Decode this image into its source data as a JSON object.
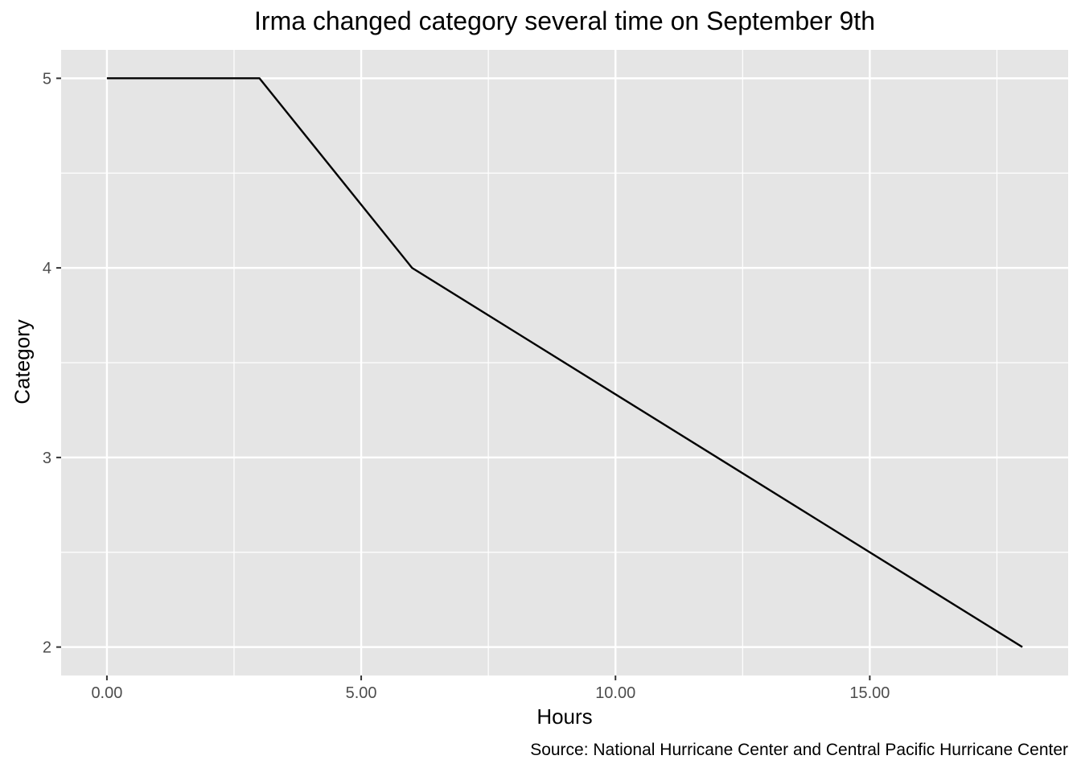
{
  "chart_data": {
    "type": "line",
    "title": "Irma changed category several time on September 9th",
    "xlabel": "Hours",
    "ylabel": "Category",
    "caption": "Source:  National Hurricane Center and Central Pacific Hurricane Center",
    "x": [
      0,
      3,
      6,
      18
    ],
    "series": [
      {
        "values": [
          5,
          5,
          4,
          2
        ]
      }
    ],
    "xlim": [
      -0.9,
      18.9
    ],
    "ylim": [
      1.85,
      5.15
    ],
    "xticks": [
      0,
      5,
      10,
      15
    ],
    "xtick_labels": [
      "0.00",
      "5.00",
      "10.00",
      "15.00"
    ],
    "yticks": [
      2,
      3,
      4,
      5
    ],
    "ytick_labels": [
      "2",
      "3",
      "4",
      "5"
    ],
    "grid": true,
    "colors": {
      "panel": "#e5e5e5",
      "grid": "#ffffff",
      "line": "#000000"
    }
  }
}
